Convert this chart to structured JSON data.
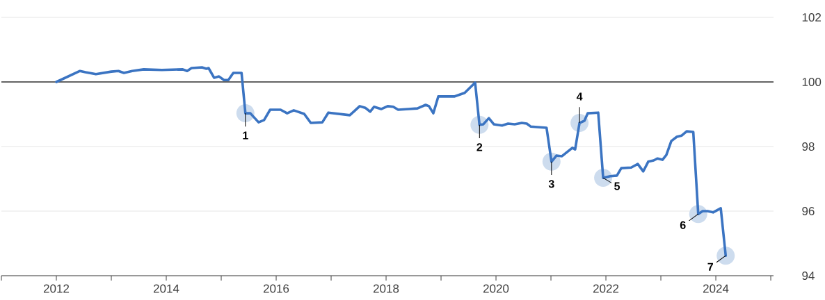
{
  "chart_data": {
    "type": "line",
    "x": [
      2012.0,
      2012.43,
      2012.53,
      2012.72,
      2013.0,
      2013.13,
      2013.23,
      2013.38,
      2013.59,
      2013.92,
      2014.3,
      2014.38,
      2014.46,
      2014.65,
      2014.73,
      2014.77,
      2014.87,
      2014.96,
      2015.05,
      2015.13,
      2015.22,
      2015.37,
      2015.44,
      2015.53,
      2015.68,
      2015.78,
      2015.89,
      2016.08,
      2016.2,
      2016.32,
      2016.51,
      2016.63,
      2016.84,
      2016.95,
      2017.34,
      2017.52,
      2017.62,
      2017.71,
      2017.78,
      2017.91,
      2018.03,
      2018.13,
      2018.22,
      2018.41,
      2018.57,
      2018.72,
      2018.78,
      2018.86,
      2018.95,
      2019.24,
      2019.43,
      2019.62,
      2019.7,
      2019.77,
      2019.87,
      2019.96,
      2020.11,
      2020.22,
      2020.34,
      2020.47,
      2020.56,
      2020.63,
      2020.92,
      2021.01,
      2021.1,
      2021.2,
      2021.39,
      2021.44,
      2021.52,
      2021.61,
      2021.67,
      2021.86,
      2021.95,
      2022.08,
      2022.2,
      2022.28,
      2022.46,
      2022.58,
      2022.68,
      2022.77,
      2022.87,
      2022.94,
      2023.03,
      2023.1,
      2023.19,
      2023.29,
      2023.38,
      2023.47,
      2023.59,
      2023.68,
      2023.76,
      2023.85,
      2023.95,
      2024.09,
      2024.18
    ],
    "series": [
      {
        "color": "#3b74c2",
        "values": [
          100.0,
          100.34,
          100.3,
          100.24,
          100.32,
          100.34,
          100.28,
          100.34,
          100.39,
          100.37,
          100.39,
          100.34,
          100.43,
          100.45,
          100.41,
          100.43,
          100.13,
          100.17,
          100.06,
          100.06,
          100.28,
          100.28,
          99.03,
          99.03,
          98.75,
          98.82,
          99.14,
          99.14,
          99.03,
          99.12,
          99.01,
          98.73,
          98.75,
          99.05,
          98.97,
          99.25,
          99.2,
          99.08,
          99.23,
          99.16,
          99.25,
          99.23,
          99.14,
          99.16,
          99.18,
          99.29,
          99.25,
          99.03,
          99.55,
          99.55,
          99.66,
          99.98,
          98.67,
          98.69,
          98.88,
          98.69,
          98.65,
          98.71,
          98.69,
          98.73,
          98.71,
          98.62,
          98.58,
          97.53,
          97.72,
          97.7,
          97.96,
          97.91,
          98.73,
          98.8,
          99.03,
          99.05,
          97.03,
          97.08,
          97.1,
          97.33,
          97.35,
          97.46,
          97.23,
          97.53,
          97.57,
          97.63,
          97.59,
          97.74,
          98.17,
          98.3,
          98.34,
          98.47,
          98.45,
          95.91,
          96.0,
          96.0,
          95.96,
          96.09,
          94.62
        ]
      }
    ],
    "xlim": [
      2011,
      2025.05
    ],
    "xticks": [
      {
        "value": 2011,
        "label": null
      },
      {
        "value": 2012,
        "label": "2012"
      },
      {
        "value": 2013,
        "label": null
      },
      {
        "value": 2014,
        "label": "2014"
      },
      {
        "value": 2015,
        "label": null
      },
      {
        "value": 2016,
        "label": "2016"
      },
      {
        "value": 2017,
        "label": null
      },
      {
        "value": 2018,
        "label": "2018"
      },
      {
        "value": 2019,
        "label": null
      },
      {
        "value": 2020,
        "label": "2020"
      },
      {
        "value": 2021,
        "label": null
      },
      {
        "value": 2022,
        "label": "2022"
      },
      {
        "value": 2023,
        "label": null
      },
      {
        "value": 2024,
        "label": "2024"
      },
      {
        "value": 2025,
        "label": null
      }
    ],
    "ylim": [
      94,
      102
    ],
    "yticks": [
      94,
      96,
      98,
      100,
      102
    ],
    "grid": "y",
    "marker": "none",
    "line_style": "solid",
    "ref_lines": [
      {
        "axis": "y",
        "value": 100,
        "color": "#333333"
      }
    ],
    "annotations": [
      {
        "text": "1",
        "x": 2015.44,
        "y": 99.03
      },
      {
        "text": "2",
        "x": 2019.7,
        "y": 98.67
      },
      {
        "text": "3",
        "x": 2021.01,
        "y": 97.53
      },
      {
        "text": "4",
        "x": 2021.52,
        "y": 98.73
      },
      {
        "text": "5",
        "x": 2021.95,
        "y": 97.03
      },
      {
        "text": "6",
        "x": 2023.68,
        "y": 95.91
      },
      {
        "text": "7",
        "x": 2024.18,
        "y": 94.62
      }
    ]
  }
}
